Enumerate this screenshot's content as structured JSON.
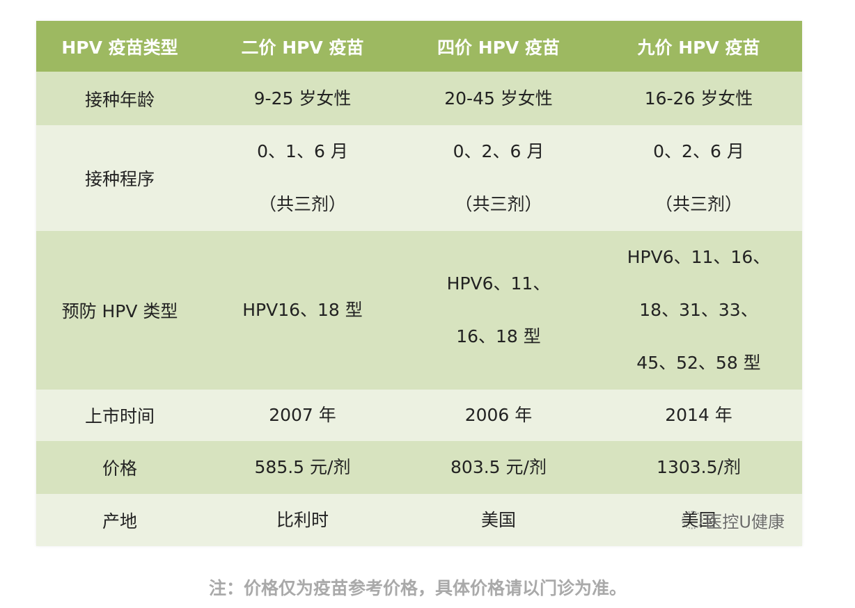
{
  "header": [
    "HPV 疫苗类型",
    "二价 HPV 疫苗",
    "四价 HPV 疫苗",
    "九价 HPV 疫苗"
  ],
  "rows": [
    {
      "label": "接种年龄",
      "cells": [
        [
          "9-25 岁女性"
        ],
        [
          "20-45 岁女性"
        ],
        [
          "16-26 岁女性"
        ]
      ]
    },
    {
      "label": "接种程序",
      "cells": [
        [
          "0、1、6 月",
          "（共三剂）"
        ],
        [
          "0、2、6 月",
          "（共三剂）"
        ],
        [
          "0、2、6 月",
          "（共三剂）"
        ]
      ]
    },
    {
      "label": "预防 HPV 类型",
      "cells": [
        [
          "HPV16、18 型"
        ],
        [
          "HPV6、11、",
          "16、18 型"
        ],
        [
          "HPV6、11、16、",
          "18、31、33、",
          "45、52、58 型"
        ]
      ]
    },
    {
      "label": "上市时间",
      "cells": [
        [
          "2007 年"
        ],
        [
          "2006 年"
        ],
        [
          "2014 年"
        ]
      ]
    },
    {
      "label": "价格",
      "cells": [
        [
          "585.5 元/剂"
        ],
        [
          "803.5 元/剂"
        ],
        [
          "1303.5/剂"
        ]
      ]
    },
    {
      "label": "产地",
      "cells": [
        [
          "比利时"
        ],
        [
          "美国"
        ],
        [
          "美国"
        ]
      ]
    }
  ],
  "watermark": "医控U健康",
  "note": "注：价格仅为疫苗参考价格，具体价格请以门诊为准。",
  "colors": {
    "header": "#9db961",
    "row_dark": "#d7e3bf",
    "row_light": "#ecf1e1"
  }
}
